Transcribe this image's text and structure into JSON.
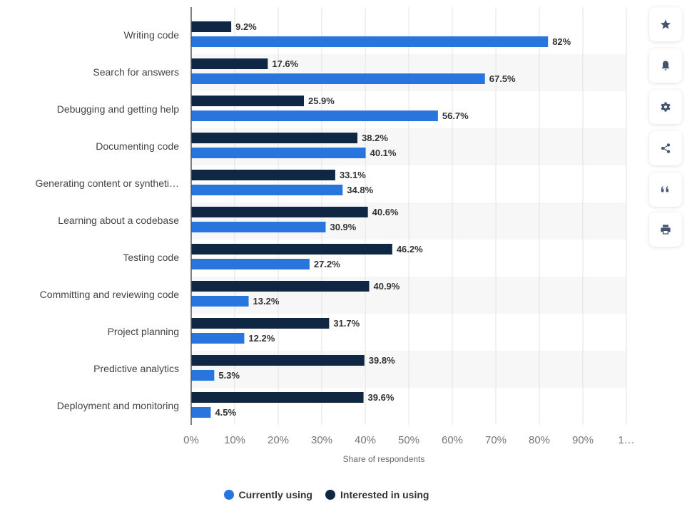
{
  "chart_data": {
    "type": "bar",
    "orientation": "horizontal",
    "categories": [
      "Writing code",
      "Search for answers",
      "Debugging and getting help",
      "Documenting code",
      "Generating content or syntheti…",
      "Learning about a codebase",
      "Testing code",
      "Committing and reviewing code",
      "Project planning",
      "Predictive analytics",
      "Deployment and monitoring"
    ],
    "series": [
      {
        "name": "Interested in using",
        "color": "#0f2742",
        "values": [
          9.2,
          17.6,
          25.9,
          38.2,
          33.1,
          40.6,
          46.2,
          40.9,
          31.7,
          39.8,
          39.6
        ],
        "labels": [
          "9.2%",
          "17.6%",
          "25.9%",
          "38.2%",
          "33.1%",
          "40.6%",
          "46.2%",
          "40.9%",
          "31.7%",
          "39.8%",
          "39.6%"
        ]
      },
      {
        "name": "Currently using",
        "color": "#2876dd",
        "values": [
          82,
          67.5,
          56.7,
          40.1,
          34.8,
          30.9,
          27.2,
          13.2,
          12.2,
          5.3,
          4.5
        ],
        "labels": [
          "82%",
          "67.5%",
          "56.7%",
          "40.1%",
          "34.8%",
          "30.9%",
          "27.2%",
          "13.2%",
          "12.2%",
          "5.3%",
          "4.5%"
        ]
      }
    ],
    "xlabel": "Share of respondents",
    "xlim": [
      0,
      100
    ],
    "xticks": [
      "0%",
      "10%",
      "20%",
      "30%",
      "40%",
      "50%",
      "60%",
      "70%",
      "80%",
      "90%",
      "1…"
    ],
    "grid": true,
    "legend_placement": "bottom"
  },
  "legend": [
    {
      "label": "Currently using",
      "color": "#2876dd"
    },
    {
      "label": "Interested in using",
      "color": "#0f2742"
    }
  ],
  "sidebar_buttons": [
    "star-icon",
    "bell-icon",
    "gear-icon",
    "share-icon",
    "quote-icon",
    "print-icon"
  ]
}
